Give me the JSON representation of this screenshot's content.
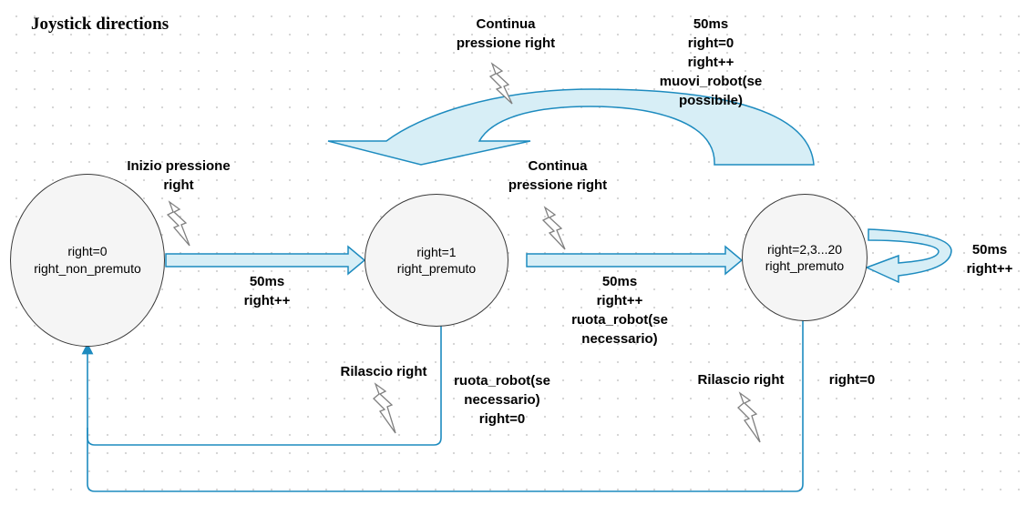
{
  "title": "Joystick directions",
  "states": {
    "s0": {
      "line1": "right=0",
      "line2": "right_non_premuto"
    },
    "s1": {
      "line1": "right=1",
      "line2": "right_premuto"
    },
    "s2": {
      "line1": "right=2,3...20",
      "line2": "right_premuto"
    }
  },
  "events": {
    "inizio": [
      "Inizio pressione",
      "right"
    ],
    "continua1": [
      "Continua",
      "pressione right"
    ],
    "continua2": [
      "Continua",
      "pressione right"
    ],
    "rilascio1": [
      "Rilascio right"
    ],
    "rilascio2": [
      "Rilascio right"
    ]
  },
  "actions": {
    "a01": [
      "50ms",
      "right++"
    ],
    "a12": [
      "50ms",
      "right++",
      "ruota_robot(se",
      "necessario)"
    ],
    "top": [
      "50ms",
      "right=0",
      "right++",
      "muovi_robot(se",
      "possibile)"
    ],
    "self": [
      "50ms",
      "right++"
    ],
    "release1": [
      "ruota_robot(se",
      "necessario)",
      "right=0"
    ],
    "release2": [
      "right=0"
    ]
  },
  "colors": {
    "arrow_fill": "#d7eef6",
    "arrow_stroke": "#1d8bbf",
    "circle_fill": "#f5f5f5",
    "lightning": "#808080"
  }
}
